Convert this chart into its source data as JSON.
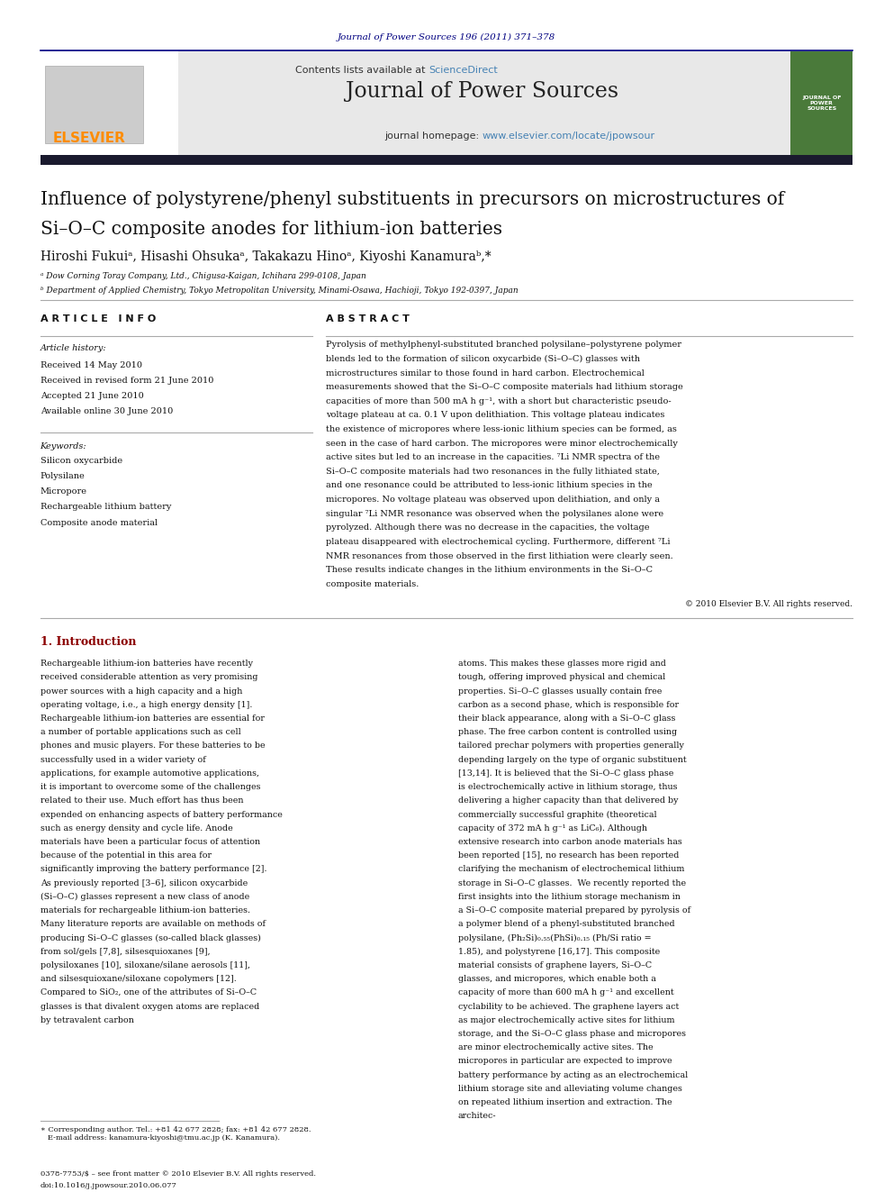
{
  "page_width": 9.92,
  "page_height": 13.23,
  "bg_color": "#ffffff",
  "journal_ref": "Journal of Power Sources 196 (2011) 371–378",
  "journal_ref_color": "#000080",
  "header_bg": "#e8e8e8",
  "header_border_color": "#000080",
  "contents_line": "Contents lists available at",
  "sciencedirect": "ScienceDirect",
  "sciencedirect_color": "#4682b4",
  "journal_title": "Journal of Power Sources",
  "homepage_text": "journal homepage: ",
  "homepage_url": "www.elsevier.com/locate/jpowsour",
  "homepage_url_color": "#4682b4",
  "elsevier_color": "#ff8c00",
  "dark_bar_color": "#1a1a2e",
  "article_title_line1": "Influence of polystyrene/phenyl substituents in precursors on microstructures of",
  "article_title_line2": "Si–O–C composite anodes for lithium-ion batteries",
  "authors": "Hiroshi Fukuiᵃ, Hisashi Ohsukaᵃ, Takakazu Hinoᵃ, Kiyoshi Kanamuraᵇ,*",
  "affiliation_a": "ᵃ Dow Corning Toray Company, Ltd., Chigusa-Kaigan, Ichihara 299-0108, Japan",
  "affiliation_b": "ᵇ Department of Applied Chemistry, Tokyo Metropolitan University, Minami-Osawa, Hachioji, Tokyo 192-0397, Japan",
  "section_article_info": "A R T I C L E   I N F O",
  "section_abstract": "A B S T R A C T",
  "article_history_label": "Article history:",
  "received": "Received 14 May 2010",
  "received_revised": "Received in revised form 21 June 2010",
  "accepted": "Accepted 21 June 2010",
  "available_online": "Available online 30 June 2010",
  "keywords_label": "Keywords:",
  "keyword1": "Silicon oxycarbide",
  "keyword2": "Polysilane",
  "keyword3": "Micropore",
  "keyword4": "Rechargeable lithium battery",
  "keyword5": "Composite anode material",
  "abstract_text": "Pyrolysis of methylphenyl-substituted branched polysilane–polystyrene polymer blends led to the formation of silicon oxycarbide (Si–O–C) glasses with microstructures similar to those found in hard carbon. Electrochemical measurements showed that the Si–O–C composite materials had lithium storage capacities of more than 500 mA h g⁻¹, with a short but characteristic pseudo-voltage plateau at ca. 0.1 V upon delithiation. This voltage plateau indicates the existence of micropores where less-ionic lithium species can be formed, as seen in the case of hard carbon. The micropores were minor electrochemically active sites but led to an increase in the capacities. ⁷Li NMR spectra of the Si–O–C composite materials had two resonances in the fully lithiated state, and one resonance could be attributed to less-ionic lithium species in the micropores. No voltage plateau was observed upon delithiation, and only a singular ⁷Li NMR resonance was observed when the polysilanes alone were pyrolyzed. Although there was no decrease in the capacities, the voltage plateau disappeared with electrochemical cycling. Furthermore, different ⁷Li NMR resonances from those observed in the first lithiation were clearly seen. These results indicate changes in the lithium environments in the Si–O–C composite materials.",
  "copyright_text": "© 2010 Elsevier B.V. All rights reserved.",
  "intro_title": "1. Introduction",
  "intro_col1": "Rechargeable lithium-ion batteries have recently received considerable attention as very promising power sources with a high capacity and a high operating voltage, i.e., a high energy density [1]. Rechargeable lithium-ion batteries are essential for a number of portable applications such as cell phones and music players. For these batteries to be successfully used in a wider variety of applications, for example automotive applications, it is important to overcome some of the challenges related to their use. Much effort has thus been expended on enhancing aspects of battery performance such as energy density and cycle life. Anode materials have been a particular focus of attention because of the potential in this area for significantly improving the battery performance [2].\n\nAs previously reported [3–6], silicon oxycarbide (Si–O–C) glasses represent a new class of anode materials for rechargeable lithium-ion batteries. Many literature reports are available on methods of producing Si–O–C glasses (so-called black glasses) from sol/gels [7,8], silsesquioxanes [9], polysiloxanes [10], siloxane/silane aerosols [11], and silsesquioxane/siloxane copolymers [12]. Compared to SiO₂, one of the attributes of Si–O–C glasses is that divalent oxygen atoms are replaced by tetravalent carbon",
  "intro_col2": "atoms. This makes these glasses more rigid and tough, offering improved physical and chemical properties. Si–O–C glasses usually contain free carbon as a second phase, which is responsible for their black appearance, along with a Si–O–C glass phase. The free carbon content is controlled using tailored prechar polymers with properties generally depending largely on the type of organic substituent [13,14]. It is believed that the Si–O–C glass phase is electrochemically active in lithium storage, thus delivering a higher capacity than that delivered by commercially successful graphite (theoretical capacity of 372 mA h g⁻¹ as LiC₆). Although extensive research into carbon anode materials has been reported [15], no research has been reported clarifying the mechanism of electrochemical lithium storage in Si–O–C glasses.\n\nWe recently reported the first insights into the lithium storage mechanism in a Si–O–C composite material prepared by pyrolysis of a polymer blend of a phenyl-substituted branched polysilane, (Ph₂Si)₀.₅₅(PhSi)₀.₁₅ (Ph/Si ratio = 1.85), and polystyrene [16,17]. This composite material consists of graphene layers, Si–O–C glasses, and micropores, which enable both a capacity of more than 600 mA h g⁻¹ and excellent cyclability to be achieved. The graphene layers act as major electrochemically active sites for lithium storage, and the Si–O–C glass phase and micropores are minor electrochemically active sites. The micropores in particular are expected to improve battery performance by acting as an electrochemical lithium storage site and alleviating volume changes on repeated lithium insertion and extraction. The architec-",
  "footnote_text": "∗ Corresponding author. Tel.: +81 42 677 2828; fax: +81 42 677 2828.\n   E-mail address: kanamura-kiyoshi@tmu.ac.jp (K. Kanamura).",
  "issn_text": "0378-7753/$ – see front matter © 2010 Elsevier B.V. All rights reserved.",
  "doi_text": "doi:10.1016/j.jpowsour.2010.06.077"
}
